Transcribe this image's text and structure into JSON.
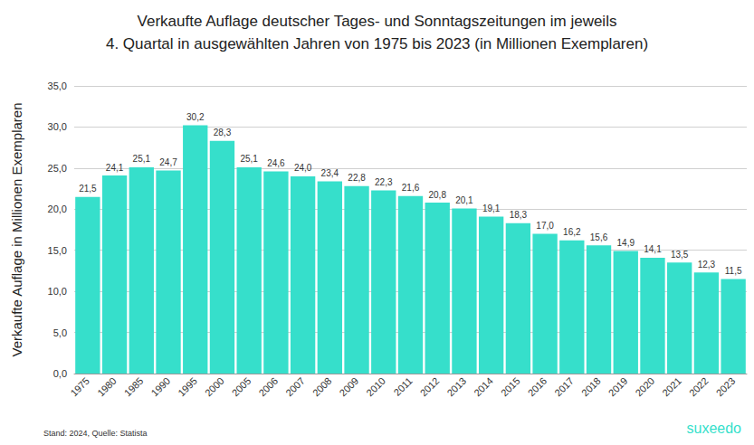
{
  "chart_data": {
    "type": "bar",
    "title": "Verkaufte Auflage deutscher Tages- und Sonntagszeitungen im jeweils\n4. Quartal in ausgewählten Jahren von 1975 bis 2023 (in Millionen Exemplaren)",
    "y_label": "Verkaufte Auflage in Millionen Exemplaren",
    "annotations": [
      "Stand: 2024, Quelle: Statista",
      "suxeedo"
    ],
    "categories": [
      "1975",
      "1980",
      "1985",
      "1990",
      "1995",
      "2000",
      "2005",
      "2006",
      "2007",
      "2008",
      "2009",
      "2010",
      "2011",
      "2012",
      "2013",
      "2014",
      "2015",
      "2016",
      "2017",
      "2018",
      "2019",
      "2020",
      "2021",
      "2022",
      "2023"
    ],
    "values": [
      21.5,
      24.1,
      25.1,
      24.7,
      30.2,
      28.3,
      25.1,
      24.6,
      24.0,
      23.4,
      22.8,
      22.3,
      21.6,
      20.8,
      20.1,
      19.1,
      18.3,
      17.0,
      16.2,
      15.6,
      14.9,
      14.1,
      13.5,
      12.3,
      11.5
    ],
    "value_labels": [
      "21,5",
      "24,1",
      "25,1",
      "24,7",
      "30,2",
      "28,3",
      "25,1",
      "24,6",
      "24,0",
      "23,4",
      "22,8",
      "22,3",
      "21,6",
      "20,8",
      "20,1",
      "19,1",
      "18,3",
      "17,0",
      "16,2",
      "15,6",
      "14,9",
      "14,1",
      "13,5",
      "12,3",
      "11,5"
    ],
    "color": "#36dfcb",
    "ylim": [
      0,
      35
    ],
    "yticks": [
      {
        "value": 0,
        "label": "0,0"
      },
      {
        "value": 5,
        "label": "5,0"
      },
      {
        "value": 10,
        "label": "10,0"
      },
      {
        "value": 15,
        "label": "15,0"
      },
      {
        "value": 20,
        "label": "20,0"
      },
      {
        "value": 25,
        "label": "25,0"
      },
      {
        "value": 30,
        "label": "30,0"
      },
      {
        "value": 35,
        "label": "35,0"
      }
    ],
    "grid": true,
    "data_labels": true
  }
}
